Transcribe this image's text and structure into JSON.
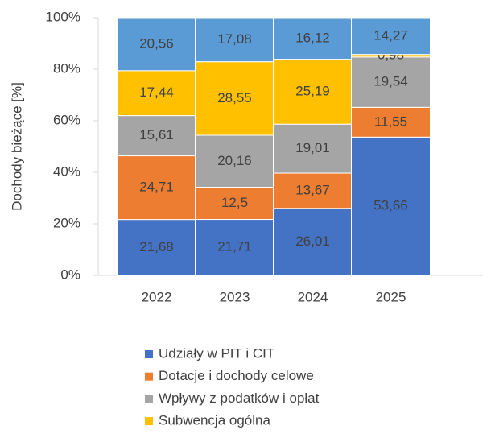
{
  "chart_data": {
    "type": "stacked_bar",
    "y_label": "Dochody bieżące [%]",
    "categories": [
      "2022",
      "2023",
      "2024",
      "2025"
    ],
    "series": [
      {
        "name": "Udziały w PIT i CIT",
        "color": "#4472c4",
        "values": [
          21.68,
          21.71,
          26.01,
          53.66
        ],
        "value_labels": [
          "21,68",
          "21,71",
          "26,01",
          "53,66"
        ]
      },
      {
        "name": "Dotacje i dochody celowe",
        "color": "#ed7d31",
        "values": [
          24.71,
          12.5,
          13.67,
          11.55
        ],
        "value_labels": [
          "24,71",
          "12,5",
          "13,67",
          "11,55"
        ]
      },
      {
        "name": "Wpływy z podatków i opłat",
        "color": "#a5a5a5",
        "values": [
          15.61,
          20.16,
          19.01,
          19.54
        ],
        "value_labels": [
          "15,61",
          "20,16",
          "19,01",
          "19,54"
        ]
      },
      {
        "name": "Subwencja ogólna",
        "color": "#ffc000",
        "values": [
          17.44,
          28.55,
          25.19,
          0.98
        ],
        "value_labels": [
          "17,44",
          "28,55",
          "25,19",
          "0,98"
        ]
      },
      {
        "color": "#5b9bd5",
        "values": [
          20.56,
          17.08,
          16.12,
          14.27
        ],
        "value_labels": [
          "20,56",
          "17,08",
          "16,12",
          "14,27"
        ]
      }
    ],
    "ylim": [
      0,
      100
    ],
    "yticks": [
      {
        "value": 0,
        "label": "0%"
      },
      {
        "value": 20,
        "label": "20%"
      },
      {
        "value": 40,
        "label": "40%"
      },
      {
        "value": 60,
        "label": "60%"
      },
      {
        "value": 80,
        "label": "80%"
      },
      {
        "value": 100,
        "label": "100%"
      }
    ],
    "legend": "bottom"
  }
}
